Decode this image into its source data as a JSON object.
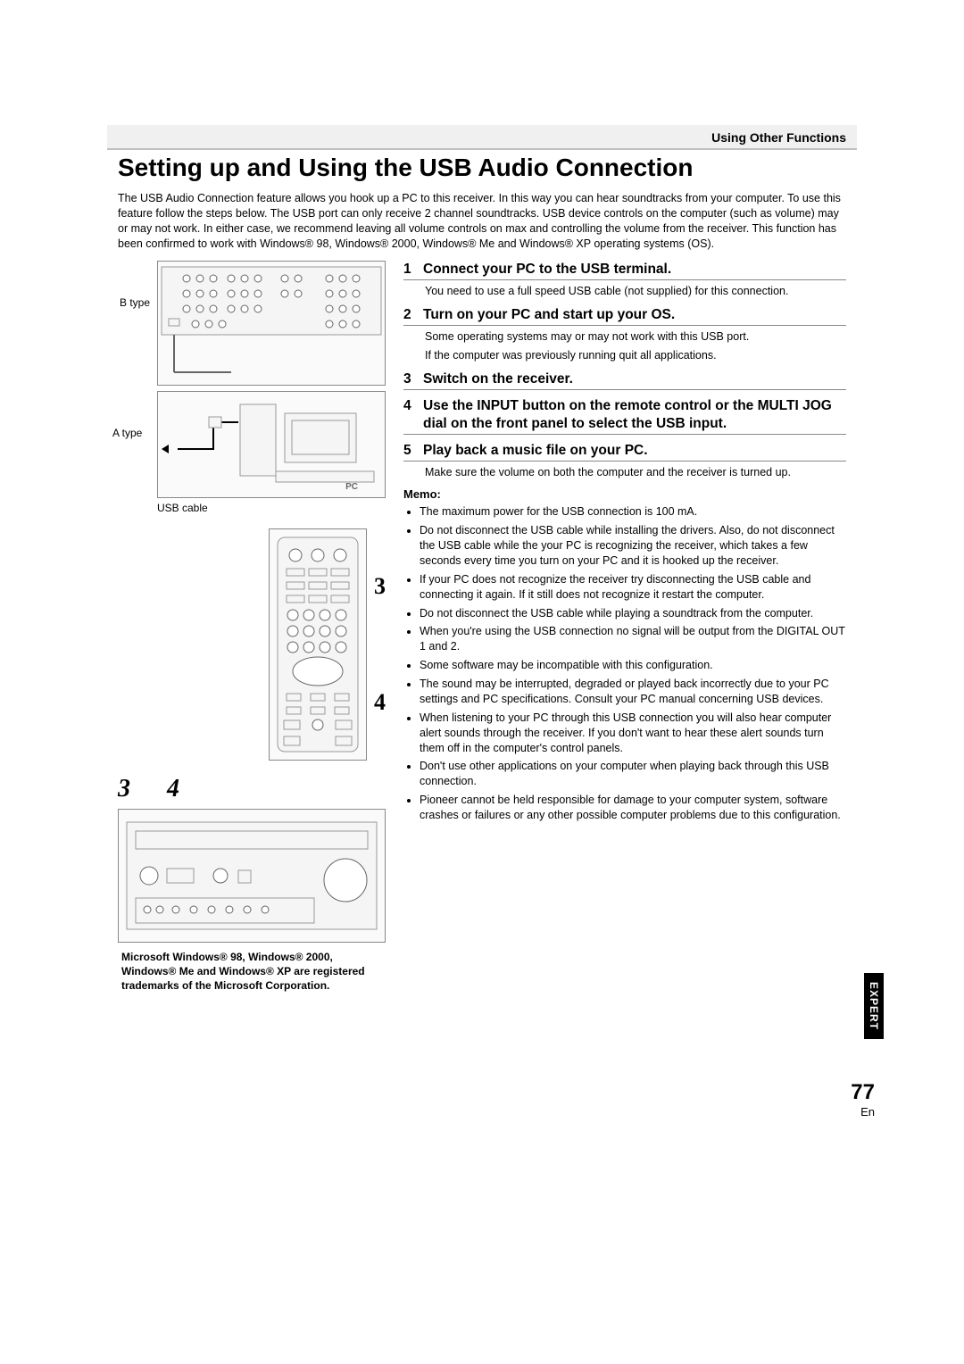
{
  "header": {
    "section": "Using Other Functions"
  },
  "title": "Setting up and Using the USB Audio Connection",
  "intro": "The USB Audio Connection feature allows you hook up a PC to this receiver. In this way you can hear soundtracks from your computer. To use this feature follow the steps below. The USB port can only receive 2 channel soundtracks. USB device controls on the computer (such as volume) may or may not work. In either case, we recommend leaving all volume controls on max and controlling the volume from the receiver. This function has been confirmed to work with Windows® 98, Windows® 2000, Windows® Me and Windows® XP operating systems (OS).",
  "labels": {
    "btype": "B type",
    "atype": "A type",
    "usbcable": "USB cable",
    "pc": "PC"
  },
  "callouts": {
    "c3": "3",
    "c4": "4"
  },
  "italic": {
    "n3": "3",
    "n4": "4"
  },
  "trademark": "Microsoft Windows® 98, Windows® 2000, Windows® Me and Windows® XP are registered trademarks of the Microsoft Corporation.",
  "steps": [
    {
      "n": "1",
      "title": "Connect your PC to the USB terminal.",
      "desc": "You need to use a full speed USB cable (not supplied) for this connection."
    },
    {
      "n": "2",
      "title": "Turn on your PC and start up your OS.",
      "desc": "Some operating systems may or may not work with this USB port.\nIf the computer was previously running quit all applications."
    },
    {
      "n": "3",
      "title": "Switch on the receiver.",
      "desc": ""
    },
    {
      "n": "4",
      "title": "Use the INPUT button on the remote control or the MULTI JOG dial on the front panel to select the USB input.",
      "desc": ""
    },
    {
      "n": "5",
      "title": "Play back a music file on your PC.",
      "desc": "Make sure the volume on both the computer and the receiver is turned up."
    }
  ],
  "memo": {
    "head": "Memo:",
    "items": [
      "The maximum power for the USB connection is 100 mA.",
      "Do not disconnect the USB cable while installing the drivers. Also, do not disconnect the USB cable while the your PC is recognizing the receiver, which takes a few seconds every time you turn on your PC and it is hooked up the receiver.",
      "If your PC does not recognize the receiver try disconnecting the USB cable and connecting it again. If it still does not recognize it restart the computer.",
      "Do not disconnect the USB cable while playing a soundtrack from the computer.",
      "When you're using the USB connection no signal will be output from the DIGITAL OUT 1 and 2.",
      "Some software may be incompatible with this configuration.",
      "The sound may be interrupted, degraded or played back incorrectly due to your PC settings and PC specifications. Consult your PC manual concerning USB devices.",
      "When listening to your PC through this USB connection you will also hear computer alert sounds through the receiver. If you don't want to hear these alert sounds turn them off in the computer's control panels.",
      "Don't use other applications on your computer when playing back through this USB connection.",
      "Pioneer cannot be held responsible for damage to your computer system, software crashes or failures or any other possible computer problems due to this configuration."
    ]
  },
  "sidetab": "EXPERT",
  "page": {
    "num": "77",
    "lang": "En"
  }
}
